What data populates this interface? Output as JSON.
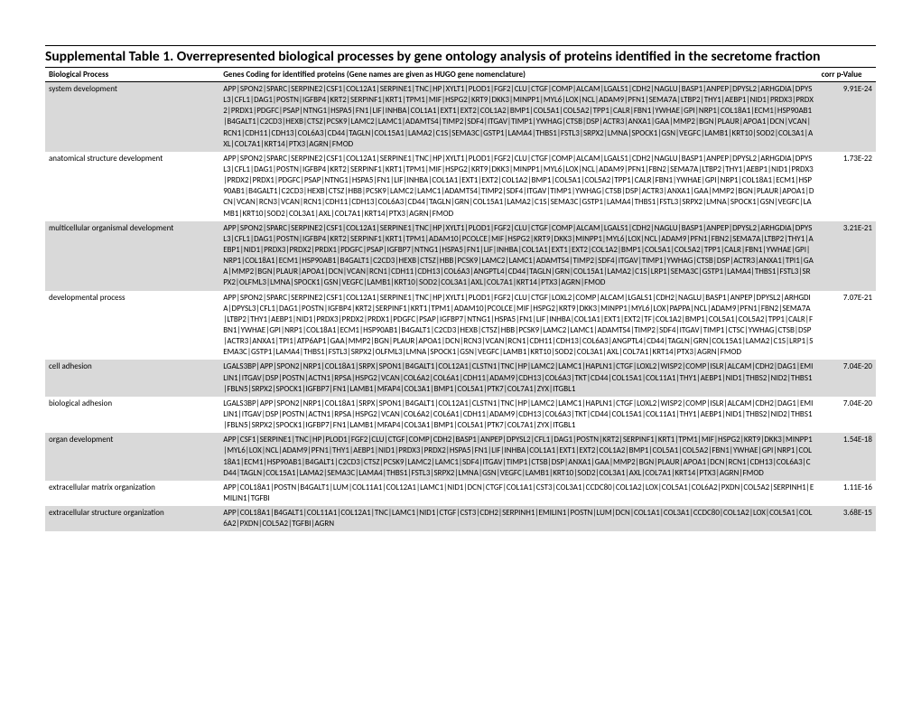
{
  "title": "Supplemental Table 1. Overrepresented biological processes by gene ontology analysis of proteins identified in the secretome fraction",
  "columns": {
    "process": "Biological Process",
    "genes": "Genes Coding for identified proteins (Gene names are given as HUGO gene nomenclature)",
    "pvalue": "corr p-Value"
  },
  "rows": [
    {
      "process": "system development",
      "genes": "APP|SPON2|SPARC|SERPINE2|CSF1|COL12A1|SERPINE1|TNC|HP|XYLT1|PLOD1|FGF2|CLU|CTGF|COMP|ALCAM|LGALS1|CDH2|NAGLU|BASP1|ANPEP|DPYSL2|ARHGDIA|DPYSL3|CFL1|DAG1|POSTN|IGFBP4|KRT2|SERPINF1|KRT1|TPM1|MIF|HSPG2|KRT9|DKK3|MINPP1|MYL6|LOX|NCL|ADAM9|PFN1|SEMA7A|LTBP2|THY1|AEBP1|NID1|PRDX3|PRDX2|PRDX1|PDGFC|PSAP|NTNG1|HSPA5|FN1|LIF|INHBA|COL1A1|EXT1|EXT2|COL1A2|BMP1|COL5A1|COL5A2|TPP1|CALR|FBN1|YWHAE|GPI|NRP1|COL18A1|ECM1|HSP90AB1|B4GALT1|C2CD3|HEXB|CTSZ|PCSK9|LAMC2|LAMC1|ADAMTS4|TIMP2|SDF4|ITGAV|TIMP1|YWHAG|CTSB|DSP|ACTR3|ANXA1|GAA|MMP2|BGN|PLAUR|APOA1|DCN|VCAN|RCN1|CDH11|CDH13|COL6A3|CD44|TAGLN|COL15A1|LAMA2|C1S|SEMA3C|GSTP1|LAMA4|THBS1|FSTL3|SRPX2|LMNA|SPOCK1|GSN|VEGFC|LAMB1|KRT10|SOD2|COL3A1|AXL|COL7A1|KRT14|PTX3|AGRN|FMOD",
      "pvalue": "9.91E-24",
      "alt": true
    },
    {
      "process": "anatomical structure development",
      "genes": "APP|SPON2|SPARC|SERPINE2|CSF1|COL12A1|SERPINE1|TNC|HP|XYLT1|PLOD1|FGF2|CLU|CTGF|COMP|ALCAM|LGALS1|CDH2|NAGLU|BASP1|ANPEP|DPYSL2|ARHGDIA|DPYSL3|CFL1|DAG1|POSTN|IGFBP4|KRT2|SERPINF1|KRT1|TPM1|MIF|HSPG2|KRT9|DKK3|MINPP1|MYL6|LOX|NCL|ADAM9|PFN1|FBN2|SEMA7A|LTBP2|THY1|AEBP1|NID1|PRDX3|PRDX2|PRDX1|PDGFC|PSAP|NTNG1|HSPA5|FN1|LIF|INHBA|COL1A1|EXT1|EXT2|COL1A2|BMP1|COL5A1|COL5A2|TPP1|CALR|FBN1|YWHAE|GPI|NRP1|COL18A1|ECM1|HSP90AB1|B4GALT1|C2CD3|HEXB|CTSZ|HBB|PCSK9|LAMC2|LAMC1|ADAMTS4|TIMP2|SDF4|ITGAV|TIMP1|YWHAG|CTSB|DSP|ACTR3|ANXA1|GAA|MMP2|BGN|PLAUR|APOA1|DCN|VCAN|RCN3|VCAN|RCN1|CDH11|CDH13|COL6A3|CD44|TAGLN|GRN|COL15A1|LAMA2|C1S|SEMA3C|GSTP1|LAMA4|THBS1|FSTL3|SRPX2|LMNA|SPOCK1|GSN|VEGFC|LAMB1|KRT10|SOD2|COL3A1|AXL|COL7A1|KRT14|PTX3|AGRN|FMOD",
      "pvalue": "1.73E-22",
      "alt": false
    },
    {
      "process": "multicellular organismal development",
      "genes": "APP|SPON2|SPARC|SERPINE2|CSF1|COL12A1|SERPINE1|TNC|HP|XYLT1|PLOD1|FGF2|CLU|CTGF|COMP|ALCAM|LGALS1|CDH2|NAGLU|BASP1|ANPEP|DPYSL2|ARHGDIA|DPYSL3|CFL1|DAG1|POSTN|IGFBP4|KRT2|SERPINF1|KRT1|TPM1|ADAM10|PCOLCE|MIF|HSPG2|KRT9|DKK3|MINPP1|MYL6|LOX|NCL|ADAM9|PFN1|FBN2|SEMA7A|LTBP2|THY1|AEBP1|NID1|PRDX3|PRDX2|PRDX1|PDGFC|PSAP|IGFBP7|NTNG1|HSPA5|FN1|LIF|INHBA|COL1A1|EXT1|EXT2|COL1A2|BMP1|COL5A1|COL5A2|TPP1|CALR|FBN1|YWHAE|GPI|NRP1|COL18A1|ECM1|HSP90AB1|B4GALT1|C2CD3|HEXB|CTSZ|HBB|PCSK9|LAMC2|LAMC1|ADAMTS4|TIMP2|SDF4|ITGAV|TIMP1|YWHAG|CTSB|DSP|ACTR3|ANXA1|TPI1|GAA|MMP2|BGN|PLAUR|APOA1|DCN|VCAN|RCN1|CDH11|CDH13|COL6A3|ANGPTL4|CD44|TAGLN|GRN|COL15A1|LAMA2|C1S|LRP1|SEMA3C|GSTP1|LAMA4|THBS1|FSTL3|SRPX2|OLFML3|LMNA|SPOCK1|GSN|VEGFC|LAMB1|KRT10|SOD2|COL3A1|AXL|COL7A1|KRT14|PTX3|AGRN|FMOD",
      "pvalue": "3.21E-21",
      "alt": true
    },
    {
      "process": "developmental process",
      "genes": "APP|SPON2|SPARC|SERPINE2|CSF1|COL12A1|SERPINE1|TNC|HP|XYLT1|PLOD1|FGF2|CLU|CTGF|LOXL2|COMP|ALCAM|LGALS1|CDH2|NAGLU|BASP1|ANPEP|DPYSL2|ARHGDIA|DPYSL3|CFL1|DAG1|POSTN|IGFBP4|KRT2|SERPINF1|KRT1|TPM1|ADAM10|PCOLCE|MIF|HSPG2|KRT9|DKK3|MINPP1|MYL6|LOX|PAPPA|NCL|ADAM9|PFN1|FBN2|SEMA7A|LTBP2|THY1|AEBP1|NID1|PRDX3|PRDX2|PRDX1|PDGFC|PSAP|IGFBP7|NTNG1|HSPA5|FN1|LIF|INHBA|COL1A1|EXT1|EXT2|TF|COL1A2|BMP1|COL5A1|COL5A2|TPP1|CALR|FBN1|YWHAE|GPI|NRP1|COL18A1|ECM1|HSP90AB1|B4GALT1|C2CD3|HEXB|CTSZ|HBB|PCSK9|LAMC2|LAMC1|ADAMTS4|TIMP2|SDF4|ITGAV|TIMP1|CTSC|YWHAG|CTSB|DSP|ACTR3|ANXA1|TPI1|ATP6AP1|GAA|MMP2|BGN|PLAUR|APOA1|DCN|RCN3|VCAN|RCN1|CDH11|CDH13|COL6A3|ANGPTL4|CD44|TAGLN|GRN|COL15A1|LAMA2|C1S|LRP1|SEMA3C|GSTP1|LAMA4|THBS1|FSTL3|SRPX2|OLFML3|LMNA|SPOCK1|GSN|VEGFC|LAMB1|KRT10|SOD2|COL3A1|AXL|COL7A1|KRT14|PTX3|AGRN|FMOD",
      "pvalue": "7.07E-21",
      "alt": false
    },
    {
      "process": "cell adhesion",
      "genes": "LGALS3BP|APP|SPON2|NRP1|COL18A1|SRPX|SPON1|B4GALT1|COL12A1|CLSTN1|TNC|HP|LAMC2|LAMC1|HAPLN1|CTGF|LOXL2|WISP2|COMP|ISLR|ALCAM|CDH2|DAG1|EMILIN1|ITGAV|DSP|POSTN|ACTN1|RPSA|HSPG2|VCAN|COL6A2|COL6A1|CDH11|ADAM9|CDH13|COL6A3|TKT|CD44|COL15A1|COL11A1|THY1|AEBP1|NID1|THBS2|NID2|THBS1|FBLN5|SRPX2|SPOCK1|IGFBP7|FN1|LAMB1|MFAP4|COL3A1|BMP1|COL5A1|PTK7|COL7A1|ZYX|ITGBL1",
      "pvalue": "7.04E-20",
      "alt": true
    },
    {
      "process": "biological adhesion",
      "genes": "LGALS3BP|APP|SPON2|NRP1|COL18A1|SRPX|SPON1|B4GALT1|COL12A1|CLSTN1|TNC|HP|LAMC2|LAMC1|HAPLN1|CTGF|LOXL2|WISP2|COMP|ISLR|ALCAM|CDH2|DAG1|EMILIN1|ITGAV|DSP|POSTN|ACTN1|RPSA|HSPG2|VCAN|COL6A2|COL6A1|CDH11|ADAM9|CDH13|COL6A3|TKT|CD44|COL15A1|COL11A1|THY1|AEBP1|NID1|THBS2|NID2|THBS1|FBLN5|SRPX2|SPOCK1|IGFBP7|FN1|LAMB1|MFAP4|COL3A1|BMP1|COL5A1|PTK7|COL7A1|ZYX|ITGBL1",
      "pvalue": "7.04E-20",
      "alt": false
    },
    {
      "process": "organ development",
      "genes": "APP|CSF1|SERPINE1|TNC|HP|PLOD1|FGF2|CLU|CTGF|COMP|CDH2|BASP1|ANPEP|DPYSL2|CFL1|DAG1|POSTN|KRT2|SERPINF1|KRT1|TPM1|MIF|HSPG2|KRT9|DKK3|MINPP1|MYL6|LOX|NCL|ADAM9|PFN1|THY1|AEBP1|NID1|PRDX3|PRDX2|HSPA5|FN1|LIF|INHBA|COL1A1|EXT1|EXT2|COL1A2|BMP1|COL5A1|COL5A2|FBN1|YWHAE|GPI|NRP1|COL18A1|ECM1|HSP90AB1|B4GALT1|C2CD3|CTSZ|PCSK9|LAMC2|LAMC1|SDF4|ITGAV|TIMP1|CTSB|DSP|ANXA1|GAA|MMP2|BGN|PLAUR|APOA1|DCN|RCN1|CDH13|COL6A3|CD44|TAGLN|COL15A1|LAMA2|SEMA3C|LAMA4|THBS1|FSTL3|SRPX2|LMNA|GSN|VEGFC|LAMB1|KRT10|SOD2|COL3A1|AXL|COL7A1|KRT14|PTX3|AGRN|FMOD",
      "pvalue": "1.54E-18",
      "alt": true
    },
    {
      "process": "extracellular matrix organization",
      "genes": "APP|COL18A1|POSTN|B4GALT1|LUM|COL11A1|COL12A1|LAMC1|NID1|DCN|CTGF|COL1A1|CST3|COL3A1|CCDC80|COL1A2|LOX|COL5A1|COL6A2|PXDN|COL5A2|SERPINH1|EMILIN1|TGFBI",
      "pvalue": "1.11E-16",
      "alt": false
    },
    {
      "process": "extracellular structure organization",
      "genes": "APP|COL18A1|B4GALT1|COL11A1|COL12A1|TNC|LAMC1|NID1|CTGF|CST3|CDH2|SERPINH1|EMILIN1|POSTN|LUM|DCN|COL1A1|COL3A1|CCDC80|COL1A2|LOX|COL5A1|COL6A2|PXDN|COL5A2|TGFBI|AGRN",
      "pvalue": "3.68E-15",
      "alt": true
    }
  ]
}
